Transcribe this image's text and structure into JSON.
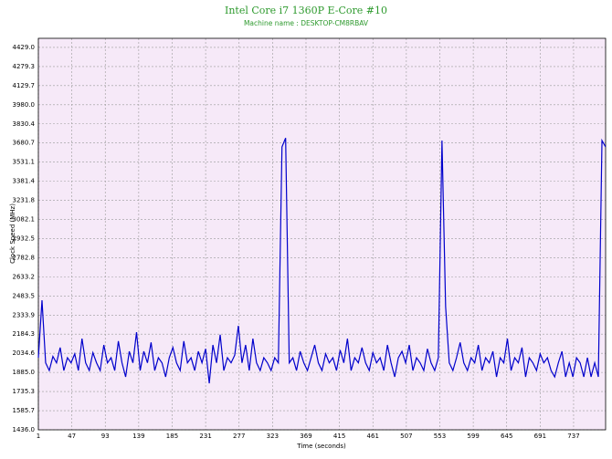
{
  "chart_data": {
    "type": "line",
    "title": "Intel Core i7 1360P E-Core #10",
    "subtitle": "Machine name : DESKTOP-CM8RBAV",
    "x_label": "Time (seconds)",
    "y_label": "Clock Speed (MHz)",
    "color": "#0000cc",
    "background": "#f6e9f8",
    "grid": true,
    "xlim": [
      1,
      781
    ],
    "ylim": [
      1436,
      4500
    ],
    "xticks": [
      1,
      47,
      93,
      139,
      185,
      231,
      277,
      323,
      369,
      415,
      461,
      507,
      553,
      599,
      645,
      691,
      737
    ],
    "yticks": [
      {
        "value": 1436,
        "label": "1436.0"
      },
      1585.7,
      1735.3,
      {
        "value": 1885,
        "label": "1885.0"
      },
      2034.6,
      2184.3,
      2333.9,
      2483.5,
      2633.2,
      2782.8,
      2932.5,
      3082.1,
      3231.8,
      3381.4,
      3531.1,
      3680.7,
      3830.4,
      {
        "value": 3980,
        "label": "3980.0"
      },
      4129.7,
      4279.3,
      {
        "value": 4429,
        "label": "4429.0"
      }
    ],
    "x": [
      1,
      6,
      11,
      16,
      21,
      26,
      31,
      36,
      41,
      46,
      51,
      56,
      61,
      66,
      71,
      76,
      81,
      86,
      91,
      96,
      101,
      106,
      111,
      116,
      121,
      126,
      131,
      136,
      141,
      146,
      151,
      156,
      161,
      166,
      171,
      176,
      181,
      186,
      191,
      196,
      201,
      206,
      211,
      216,
      221,
      226,
      231,
      236,
      241,
      246,
      251,
      256,
      261,
      266,
      271,
      276,
      281,
      286,
      291,
      296,
      301,
      306,
      311,
      316,
      321,
      326,
      331,
      336,
      341,
      346,
      351,
      356,
      361,
      366,
      371,
      376,
      381,
      386,
      391,
      396,
      401,
      406,
      411,
      416,
      421,
      426,
      431,
      436,
      441,
      446,
      451,
      456,
      461,
      466,
      471,
      476,
      481,
      486,
      491,
      496,
      501,
      506,
      511,
      516,
      521,
      526,
      531,
      536,
      541,
      546,
      551,
      556,
      561,
      566,
      571,
      576,
      581,
      586,
      591,
      596,
      601,
      606,
      611,
      616,
      621,
      626,
      631,
      636,
      641,
      646,
      651,
      656,
      661,
      666,
      671,
      676,
      681,
      686,
      691,
      696,
      701,
      706,
      711,
      716,
      721,
      726,
      731,
      736,
      741,
      746,
      751,
      756,
      761,
      766,
      771,
      776,
      781
    ],
    "values": [
      2000,
      2450,
      1960,
      1900,
      2010,
      1960,
      2080,
      1900,
      2000,
      1960,
      2030,
      1900,
      2150,
      1960,
      1900,
      2040,
      1960,
      1900,
      2100,
      1960,
      2000,
      1900,
      2130,
      1960,
      1850,
      2050,
      1960,
      2200,
      1900,
      2050,
      1960,
      2120,
      1900,
      2000,
      1960,
      1850,
      2000,
      2080,
      1960,
      1900,
      2130,
      1960,
      2000,
      1900,
      2050,
      1960,
      2070,
      1800,
      2100,
      1960,
      2180,
      1900,
      2000,
      1960,
      2020,
      2250,
      1960,
      2100,
      1900,
      2150,
      1960,
      1900,
      2000,
      1960,
      1900,
      2000,
      1960,
      3650,
      3720,
      1960,
      2000,
      1900,
      2050,
      1960,
      1900,
      2000,
      2100,
      1960,
      1900,
      2030,
      1960,
      2000,
      1900,
      2060,
      1960,
      2150,
      1900,
      2000,
      1960,
      2080,
      1960,
      1900,
      2040,
      1960,
      2000,
      1900,
      2100,
      1960,
      1850,
      2000,
      2050,
      1960,
      2100,
      1900,
      2000,
      1960,
      1900,
      2070,
      1960,
      1900,
      2000,
      3700,
      2400,
      1960,
      1900,
      2000,
      2120,
      1960,
      1900,
      2000,
      1960,
      2100,
      1900,
      2000,
      1960,
      2050,
      1850,
      2000,
      1960,
      2150,
      1900,
      2000,
      1960,
      2080,
      1850,
      2000,
      1960,
      1900,
      2030,
      1960,
      2000,
      1900,
      1850,
      1960,
      2050,
      1850,
      1960,
      1850,
      2000,
      1960,
      1850,
      2000,
      1850,
      1960,
      1850,
      3700,
      3650
    ]
  }
}
